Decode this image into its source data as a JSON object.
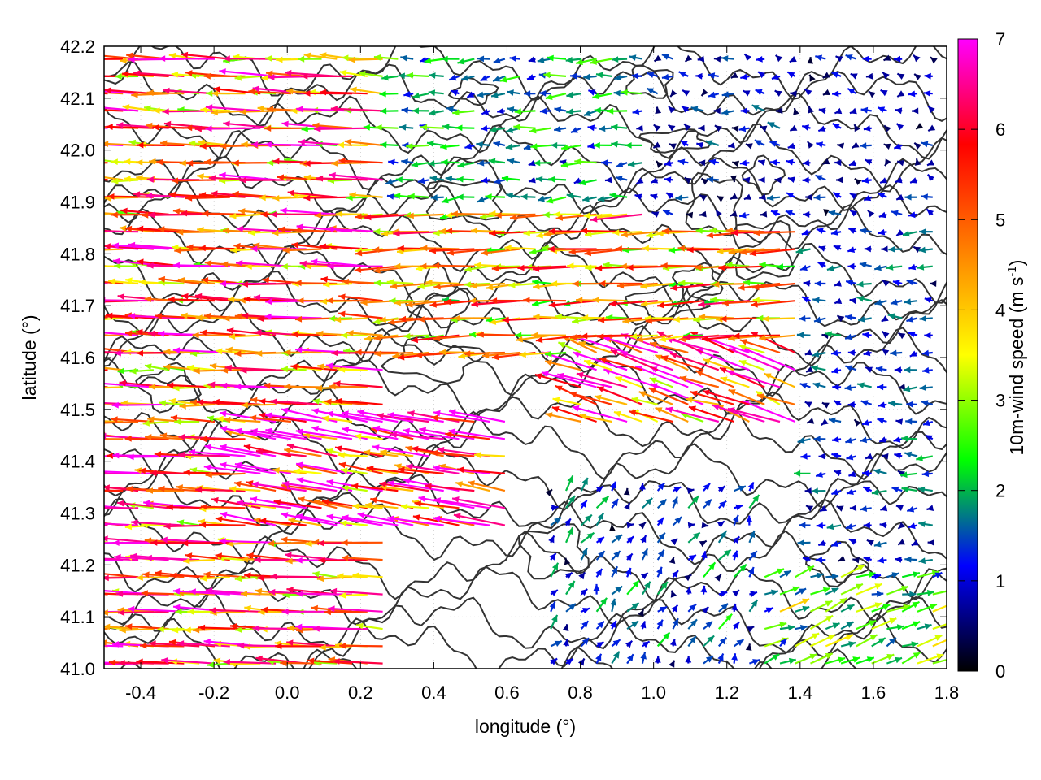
{
  "chart_data": {
    "type": "vector-field",
    "xlabel": "longitude (°)",
    "ylabel": "latitude (°)",
    "xlim": [
      -0.5,
      1.8
    ],
    "ylim": [
      41.0,
      42.2
    ],
    "xticks": [
      "-0.4",
      "-0.2",
      "0.0",
      "0.2",
      "0.4",
      "0.6",
      "0.8",
      "1.0",
      "1.2",
      "1.4",
      "1.6",
      "1.8"
    ],
    "xtick_values": [
      -0.4,
      -0.2,
      0.0,
      0.2,
      0.4,
      0.6,
      0.8,
      1.0,
      1.2,
      1.4,
      1.6,
      1.8
    ],
    "yticks": [
      "41.0",
      "41.1",
      "41.2",
      "41.3",
      "41.4",
      "41.5",
      "41.6",
      "41.7",
      "41.8",
      "41.9",
      "42.0",
      "42.1",
      "42.2"
    ],
    "ytick_values": [
      41.0,
      41.1,
      41.2,
      41.3,
      41.4,
      41.5,
      41.6,
      41.7,
      41.8,
      41.9,
      42.0,
      42.1,
      42.2
    ],
    "grid": true,
    "colorbar": {
      "label": "10m-wind speed (m s-1)",
      "label_main": "10m-wind speed (m s",
      "label_sup": "-1",
      "label_close": ")",
      "range": [
        0,
        7
      ],
      "ticks": [
        "0",
        "1",
        "2",
        "3",
        "4",
        "5",
        "6",
        "7"
      ],
      "tick_values": [
        0,
        1,
        2,
        3,
        4,
        5,
        6,
        7
      ],
      "colors": [
        "#000000",
        "#0000ff",
        "#00ff00",
        "#ffff00",
        "#ff8000",
        "#ff0000",
        "#ff00ff"
      ]
    },
    "contour_color": "#333333",
    "wind_regions": [
      {
        "lon": [
          -0.5,
          0.3
        ],
        "lat": [
          41.0,
          42.2
        ],
        "u": -4.8,
        "v": 0.2,
        "speed": 5.0
      },
      {
        "lon": [
          -0.1,
          0.6
        ],
        "lat": [
          41.25,
          41.5
        ],
        "u": -5.5,
        "v": 0.9,
        "speed": 6.2
      },
      {
        "lon": [
          0.3,
          1.4
        ],
        "lat": [
          41.6,
          41.9
        ],
        "u": -4.2,
        "v": -0.2,
        "speed": 4.2
      },
      {
        "lon": [
          0.3,
          1.0
        ],
        "lat": [
          41.9,
          42.2
        ],
        "u": -1.5,
        "v": -0.1,
        "speed": 1.8
      },
      {
        "lon": [
          1.0,
          1.8
        ],
        "lat": [
          41.85,
          42.2
        ],
        "u": -0.6,
        "v": 0.1,
        "speed": 0.8
      },
      {
        "lon": [
          1.4,
          1.8
        ],
        "lat": [
          41.2,
          41.85
        ],
        "u": -1.0,
        "v": 0.0,
        "speed": 1.2
      },
      {
        "lon": [
          1.3,
          1.8
        ],
        "lat": [
          41.0,
          41.2
        ],
        "u": 1.8,
        "v": 0.7,
        "speed": 2.4
      },
      {
        "lon": [
          0.7,
          1.3
        ],
        "lat": [
          41.0,
          41.35
        ],
        "u": 0.5,
        "v": 0.6,
        "speed": 1.2
      },
      {
        "lon": [
          0.8,
          1.4
        ],
        "lat": [
          41.45,
          41.62
        ],
        "u": -3.5,
        "v": 1.2,
        "speed": 5.2
      }
    ]
  }
}
